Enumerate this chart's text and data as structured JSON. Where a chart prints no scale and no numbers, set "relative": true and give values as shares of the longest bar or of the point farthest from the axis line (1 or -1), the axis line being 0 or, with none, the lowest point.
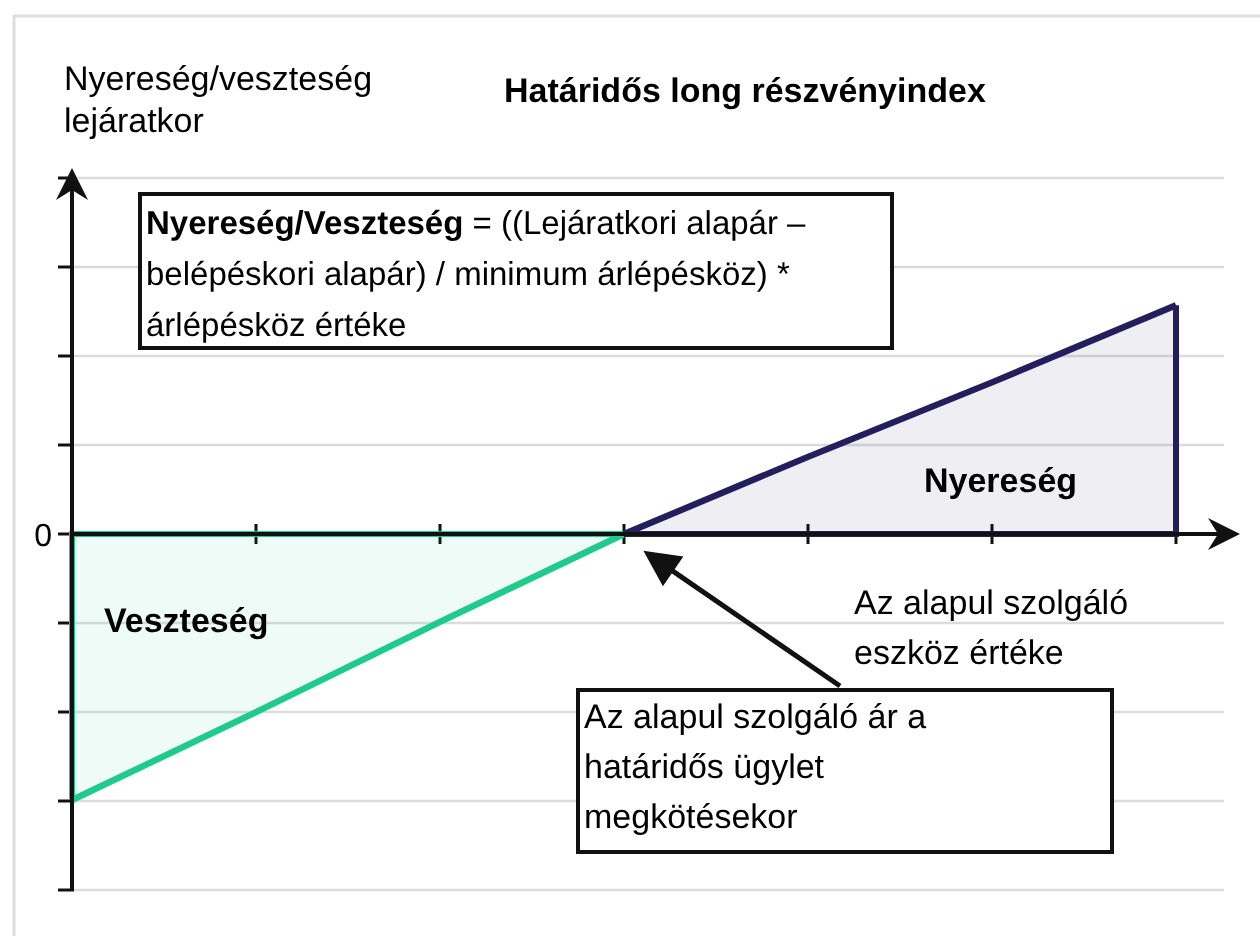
{
  "chart_data": {
    "type": "area",
    "title": "Határidős long részvényindex",
    "ylabel": "Nyereség/veszteség lejáratkor",
    "xlabel": "Az alapul szolgáló eszköz értéke",
    "relative": true,
    "grid": "y",
    "categories": [
      null,
      null,
      null,
      null,
      null,
      null,
      null
    ],
    "series": [
      {
        "color": "#1ecb8a",
        "values": [
          -1,
          -0.67,
          -0.33,
          0,
          null,
          null,
          null
        ]
      },
      {
        "color": "#231f5c",
        "values": [
          null,
          null,
          null,
          0,
          0.29,
          0.57,
          0.86
        ]
      }
    ],
    "annotations": [
      "0",
      "Nyereség/Veszteség = ((Lejáratkori alapár – belépéskori alapár) / minimum árlépésköz) * árlépésköz értéke",
      "Nyereség",
      "Veszteség",
      "Az alapul szolgáló ár a határidős ügylet megkötésekor"
    ]
  }
}
